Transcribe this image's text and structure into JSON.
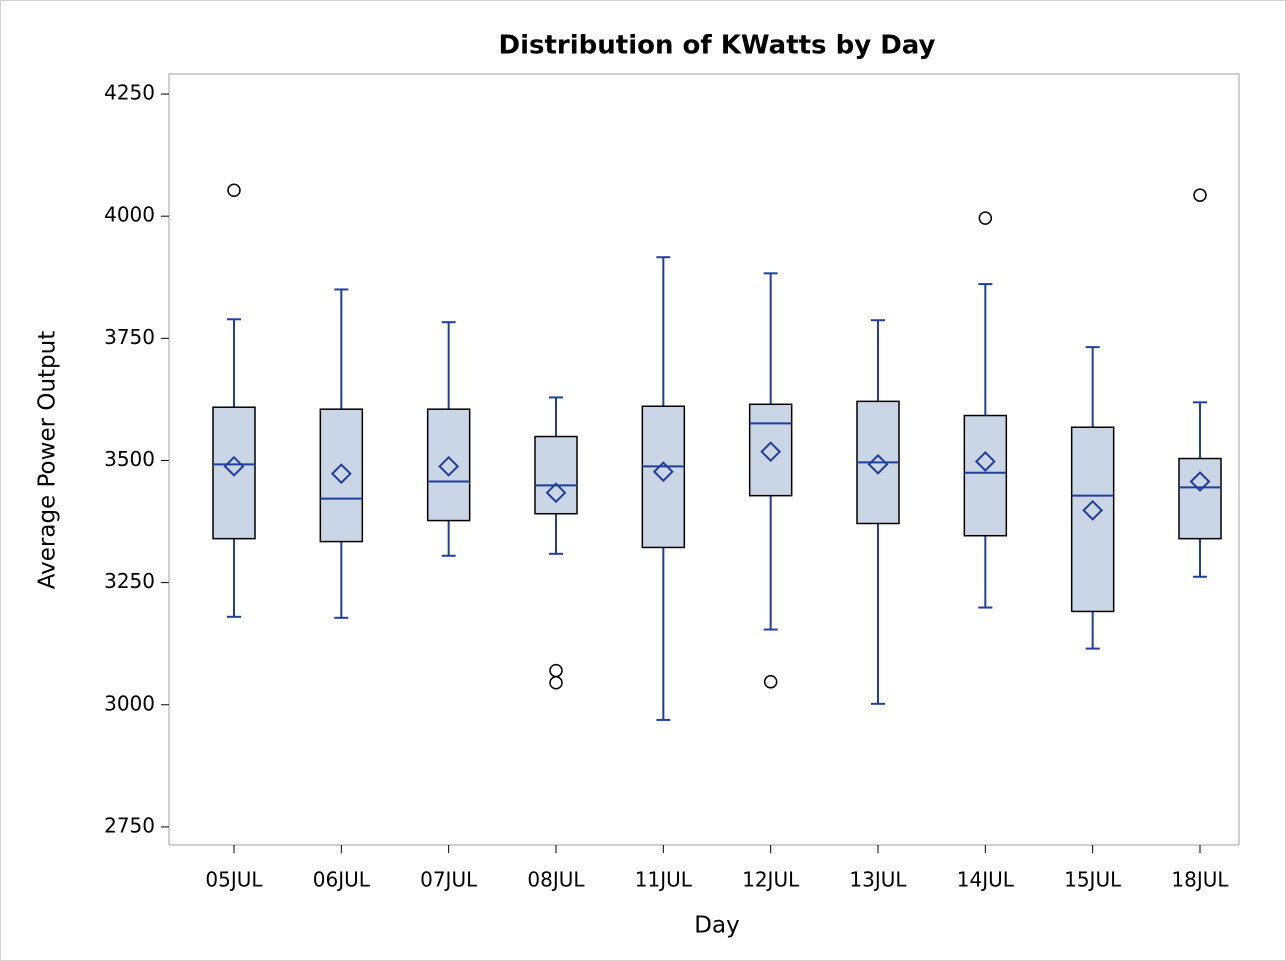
{
  "chart_data": {
    "type": "box",
    "title": "Distribution of KWatts by Day",
    "x_label": "Day",
    "y_label": "Average Power Output",
    "categories": [
      "05JUL",
      "06JUL",
      "07JUL",
      "08JUL",
      "11JUL",
      "12JUL",
      "13JUL",
      "14JUL",
      "15JUL",
      "18JUL"
    ],
    "boxes": [
      {
        "whisker_low": 3180,
        "q1": 3340,
        "median": 3492,
        "q3": 3609,
        "whisker_high": 3789,
        "mean": 3488,
        "outliers": [
          4053
        ]
      },
      {
        "whisker_low": 3178,
        "q1": 3334,
        "median": 3422,
        "q3": 3605,
        "whisker_high": 3850,
        "mean": 3473,
        "outliers": []
      },
      {
        "whisker_low": 3305,
        "q1": 3377,
        "median": 3457,
        "q3": 3605,
        "whisker_high": 3783,
        "mean": 3488,
        "outliers": []
      },
      {
        "whisker_low": 3309,
        "q1": 3391,
        "median": 3449,
        "q3": 3549,
        "whisker_high": 3629,
        "mean": 3434,
        "outliers": [
          3070,
          3045
        ]
      },
      {
        "whisker_low": 2969,
        "q1": 3322,
        "median": 3488,
        "q3": 3611,
        "whisker_high": 3916,
        "mean": 3477,
        "outliers": []
      },
      {
        "whisker_low": 3154,
        "q1": 3428,
        "median": 3576,
        "q3": 3615,
        "whisker_high": 3883,
        "mean": 3518,
        "outliers": [
          3047
        ]
      },
      {
        "whisker_low": 3002,
        "q1": 3371,
        "median": 3496,
        "q3": 3621,
        "whisker_high": 3787,
        "mean": 3492,
        "outliers": []
      },
      {
        "whisker_low": 3199,
        "q1": 3346,
        "median": 3475,
        "q3": 3592,
        "whisker_high": 3861,
        "mean": 3498,
        "outliers": [
          3996
        ]
      },
      {
        "whisker_low": 3115,
        "q1": 3191,
        "median": 3428,
        "q3": 3568,
        "whisker_high": 3732,
        "mean": 3398,
        "outliers": []
      },
      {
        "whisker_low": 3262,
        "q1": 3340,
        "median": 3445,
        "q3": 3504,
        "whisker_high": 3619,
        "mean": 3457,
        "outliers": [
          4043
        ]
      }
    ],
    "box_color": "#cad5e5",
    "line_color": "#1f3f9f",
    "outlier_color": "#000000",
    "ylim": [
      2713,
      4291
    ],
    "yticks": [
      2750,
      3000,
      3250,
      3500,
      3750,
      4000,
      4250
    ],
    "grid": false
  }
}
